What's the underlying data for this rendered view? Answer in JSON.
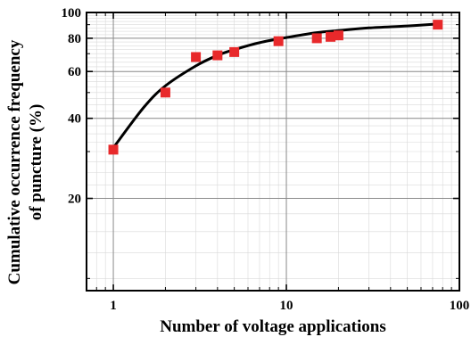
{
  "chart_data": {
    "type": "scatter",
    "xlabel": "Number of voltage applications",
    "ylabel_line1": "Cumulative occurrence frequency",
    "ylabel_line2": "of puncture (%)",
    "x_scale": "log",
    "y_scale": "log",
    "xlim": [
      0.7,
      100
    ],
    "ylim": [
      9,
      100
    ],
    "x_ticks": [
      1,
      10,
      100
    ],
    "x_tick_labels": [
      "1",
      "10",
      "100"
    ],
    "y_ticks": [
      20,
      40,
      60,
      80,
      100
    ],
    "y_tick_labels": [
      "20",
      "40",
      "60",
      "80",
      "100"
    ],
    "grid": true,
    "series": [
      {
        "kind": "points",
        "color": "#e8292b",
        "marker": "square",
        "x": [
          1,
          2,
          3,
          4,
          5,
          9,
          15,
          18,
          20,
          75
        ],
        "y": [
          30.5,
          50,
          68,
          69,
          71,
          78,
          80,
          81,
          82,
          90
        ]
      },
      {
        "kind": "curve",
        "color": "#000000",
        "x": [
          1,
          1.5,
          2,
          3,
          4,
          5,
          7,
          10,
          15,
          20,
          30,
          50,
          75
        ],
        "y": [
          31,
          44,
          53,
          63,
          69,
          72.5,
          77,
          80.5,
          84,
          85.5,
          87.5,
          89,
          90.5
        ]
      }
    ]
  }
}
